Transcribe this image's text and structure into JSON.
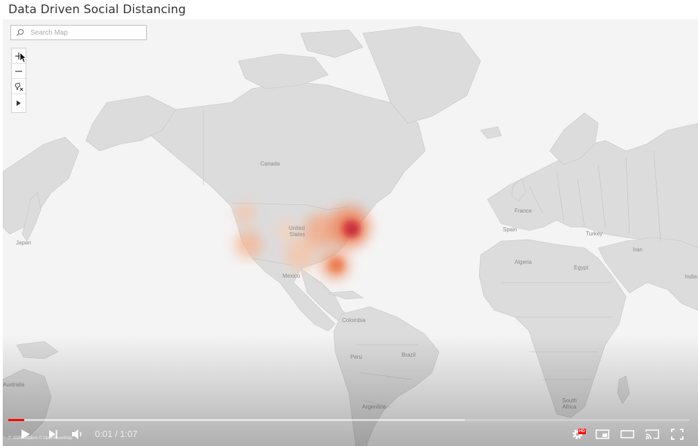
{
  "page": {
    "title": "Data Driven Social Distancing"
  },
  "search": {
    "placeholder": "Search Map",
    "value": ""
  },
  "map_tools": [
    {
      "name": "zoom-in",
      "icon": "plus-icon"
    },
    {
      "name": "zoom-out",
      "icon": "minus-icon"
    },
    {
      "name": "reset-map",
      "icon": "pin-reset-icon"
    },
    {
      "name": "expand-toolbar",
      "icon": "play-triangle-icon"
    }
  ],
  "map_labels": {
    "canada": "Canada",
    "united": "United",
    "states": "States",
    "mexico": "Mexico",
    "japan": "Japan",
    "colombia": "Colombia",
    "peru": "Peru",
    "brazil": "Brazil",
    "argentina": "Argentina",
    "australia": "Australia",
    "france": "France",
    "spain": "Spain",
    "turkey": "Turkey",
    "iran": "Iran",
    "india": "India",
    "algeria": "Algeria",
    "egypt": "Egypt",
    "south": "South",
    "africa": "Africa"
  },
  "heatmap": {
    "low_color": "#f6c5a8",
    "mid_color": "#ef8a5e",
    "high_color": "#b8203f"
  },
  "attribution": "© 2020 Mapbox © OpenStreetMap",
  "player": {
    "current_time": "0:01",
    "separator": "/",
    "duration": "1:07",
    "played_fraction": 0.023,
    "loaded_fraction": 0.67,
    "hd_badge": "HD",
    "accent_color": "#ff0000"
  }
}
